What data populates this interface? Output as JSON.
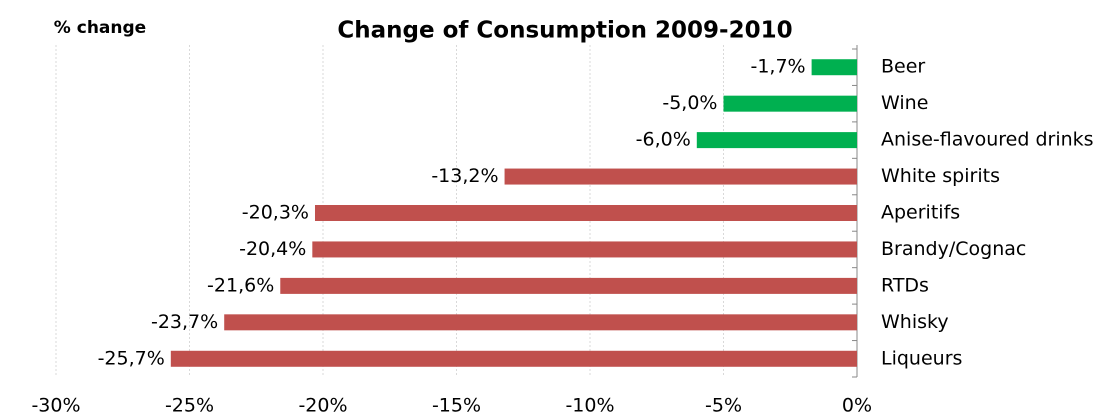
{
  "chart_data": {
    "type": "hbar",
    "title": "Change of Consumption 2009-2010",
    "y_axis_label": "% change",
    "categories": [
      "Beer",
      "Wine",
      "Anise-flavoured drinks",
      "White spirits",
      "Aperitifs",
      "Brandy/Cognac",
      "RTDs",
      "Whisky",
      "Liqueurs"
    ],
    "values": [
      -1.7,
      -5.0,
      -6.0,
      -13.2,
      -20.3,
      -20.4,
      -21.6,
      -23.7,
      -25.7
    ],
    "value_labels": [
      "-1,7%",
      "-5,0%",
      "-6,0%",
      "-13,2%",
      "-20,3%",
      "-20,4%",
      "-21,6%",
      "-23,7%",
      "-25,7%"
    ],
    "colors": [
      "#00b050",
      "#00b050",
      "#00b050",
      "#c0504d",
      "#c0504d",
      "#c0504d",
      "#c0504d",
      "#c0504d",
      "#c0504d"
    ],
    "xlim": [
      -30,
      0
    ],
    "xticks": [
      {
        "value": -30,
        "label": "-30%"
      },
      {
        "value": -25,
        "label": "-25%"
      },
      {
        "value": -20,
        "label": "-20%"
      },
      {
        "value": -15,
        "label": "-15%"
      },
      {
        "value": -10,
        "label": "-10%"
      },
      {
        "value": -5,
        "label": "-5%"
      },
      {
        "value": 0,
        "label": "0%"
      }
    ],
    "grid": true
  }
}
